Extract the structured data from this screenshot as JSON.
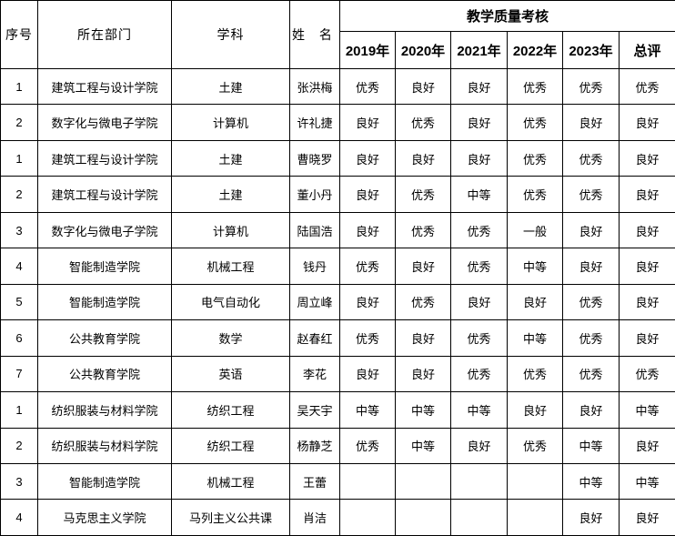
{
  "table": {
    "assessment_header": "教学质量考核",
    "columns": {
      "seq": "序号",
      "department": "所在部门",
      "subject": "学科",
      "name": "姓 名"
    },
    "year_columns": [
      "2019年",
      "2020年",
      "2021年",
      "2022年",
      "2023年"
    ],
    "overall_column": "总评",
    "rows": [
      [
        "1",
        "建筑工程与设计学院",
        "土建",
        "张洪梅",
        "优秀",
        "良好",
        "良好",
        "优秀",
        "优秀",
        "优秀"
      ],
      [
        "2",
        "数字化与微电子学院",
        "计算机",
        "许礼捷",
        "良好",
        "优秀",
        "良好",
        "优秀",
        "良好",
        "良好"
      ],
      [
        "1",
        "建筑工程与设计学院",
        "土建",
        "曹晓罗",
        "良好",
        "良好",
        "良好",
        "优秀",
        "优秀",
        "良好"
      ],
      [
        "2",
        "建筑工程与设计学院",
        "土建",
        "董小丹",
        "良好",
        "优秀",
        "中等",
        "优秀",
        "优秀",
        "良好"
      ],
      [
        "3",
        "数字化与微电子学院",
        "计算机",
        "陆国浩",
        "良好",
        "优秀",
        "优秀",
        "一般",
        "良好",
        "良好"
      ],
      [
        "4",
        "智能制造学院",
        "机械工程",
        "钱丹",
        "优秀",
        "良好",
        "优秀",
        "中等",
        "良好",
        "良好"
      ],
      [
        "5",
        "智能制造学院",
        "电气自动化",
        "周立峰",
        "良好",
        "优秀",
        "良好",
        "良好",
        "优秀",
        "良好"
      ],
      [
        "6",
        "公共教育学院",
        "数学",
        "赵春红",
        "优秀",
        "良好",
        "优秀",
        "中等",
        "优秀",
        "良好"
      ],
      [
        "7",
        "公共教育学院",
        "英语",
        "李花",
        "良好",
        "良好",
        "优秀",
        "优秀",
        "优秀",
        "优秀"
      ],
      [
        "1",
        "纺织服装与材料学院",
        "纺织工程",
        "吴天宇",
        "中等",
        "中等",
        "中等",
        "良好",
        "良好",
        "中等"
      ],
      [
        "2",
        "纺织服装与材料学院",
        "纺织工程",
        "杨静芝",
        "优秀",
        "中等",
        "良好",
        "优秀",
        "中等",
        "良好"
      ],
      [
        "3",
        "智能制造学院",
        "机械工程",
        "王蕾",
        "",
        "",
        "",
        "",
        "中等",
        "中等"
      ],
      [
        "4",
        "马克思主义学院",
        "马列主义公共课",
        "肖洁",
        "",
        "",
        "",
        "",
        "良好",
        "良好"
      ]
    ]
  }
}
